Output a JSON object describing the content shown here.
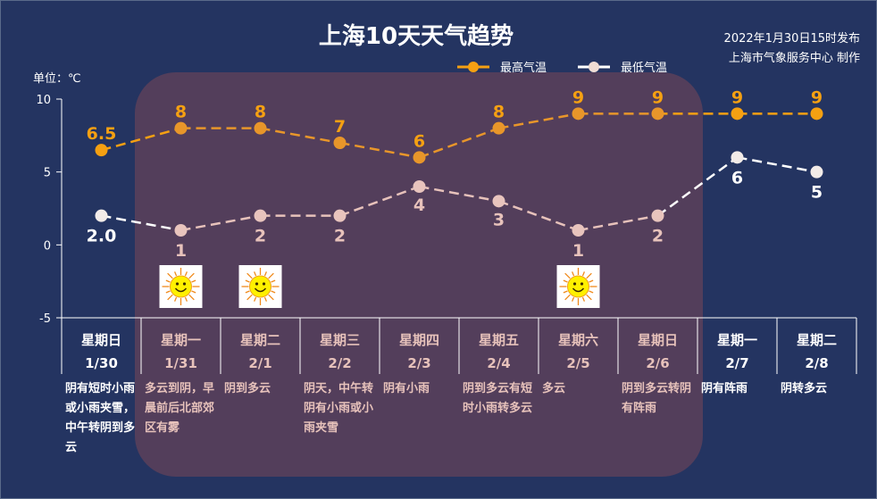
{
  "header": {
    "title": "上海10天天气趋势",
    "publish_line1": "2022年1月30日15时发布",
    "publish_line2": "上海市气象服务中心 制作"
  },
  "chart_data": {
    "type": "line",
    "title": "上海10天天气趋势",
    "ylabel": "单位：℃",
    "ylim": [
      -5,
      10
    ],
    "yticks": [
      "10",
      "5",
      "0",
      "-5"
    ],
    "grid": false,
    "legend_position": "top-right",
    "categories": [
      "星期日",
      "星期一",
      "星期二",
      "星期三",
      "星期四",
      "星期五",
      "星期六",
      "星期日",
      "星期一",
      "星期二"
    ],
    "dates": [
      "1/30",
      "1/31",
      "2/1",
      "2/2",
      "2/3",
      "2/4",
      "2/5",
      "2/6",
      "2/7",
      "2/8"
    ],
    "series": [
      {
        "name": "最高气温",
        "values": [
          6.5,
          8,
          8,
          7,
          6,
          8,
          9,
          9,
          9,
          9
        ],
        "labels": [
          "6.5",
          "8",
          "8",
          "7",
          "6",
          "8",
          "9",
          "9",
          "9",
          "9"
        ],
        "color": "#f5a012",
        "dim_color": "#e8962a"
      },
      {
        "name": "最低气温",
        "values": [
          2.0,
          1,
          2,
          2,
          4,
          3,
          1,
          2,
          6,
          5
        ],
        "labels": [
          "2.0",
          "1",
          "2",
          "2",
          "4",
          "3",
          "1",
          "2",
          "6",
          "5"
        ],
        "color": "#ffffff",
        "dim_color": "#e7c2bb"
      }
    ],
    "weather": [
      "阴有短时小雨或小雨夹雪，中午转阴到多云",
      "多云到阴，早晨前后北部郊区有雾",
      "阴到多云",
      "阴天，中午转阴有小雨或小雨夹雪",
      "阴有小雨",
      "阴到多云有短时小雨转多云",
      "多云",
      "阴到多云转阴有阵雨",
      "阴有阵雨",
      "阴转多云"
    ],
    "sun_icon_days": [
      1,
      2,
      6
    ],
    "highlight_range": [
      1,
      7
    ]
  },
  "colors": {
    "background": "#243461",
    "highlight": "#533e5b",
    "text_dim": "#e7c2bb"
  }
}
